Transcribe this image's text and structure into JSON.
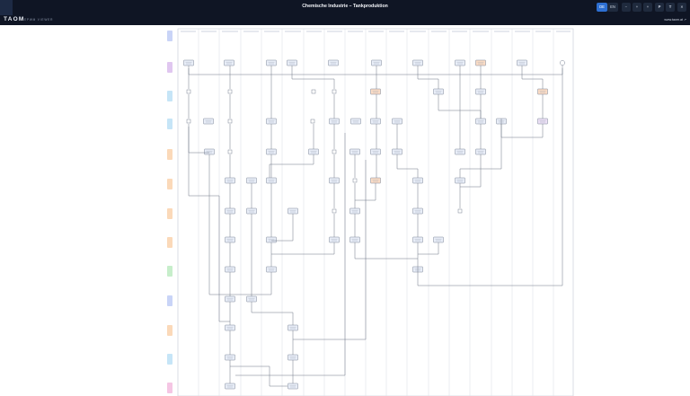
{
  "header": {
    "logo_text": "TAOM",
    "subtitle": "EPWM VIEWER",
    "title": "Chemische Industrie – Tankproduktion",
    "lang_de": "DE",
    "lang_en": "EN",
    "zoom_out": "−",
    "zoom_reset": "+",
    "zoom_in": "+",
    "p_button": "P",
    "t_button": "T",
    "close_button": "✕",
    "website": "www.taom.at ↗",
    "active_language": "DE"
  },
  "colors": {
    "topbar": "#0f1524",
    "accent": "#2d6fd2",
    "lane_colors": [
      "#c9d4f7",
      "#e0c7f0",
      "#c6e5f7",
      "#c6e5f7",
      "#fbd9b9",
      "#fbd9b9",
      "#fbd9b9",
      "#fbd9b9",
      "#c7eecb",
      "#c9d4f7",
      "#fbd9b9",
      "#c6e5f7",
      "#f5c6e4"
    ],
    "node_default": "#e9eef8",
    "node_orange": "#fbdcc5",
    "node_purple": "#ece0f6"
  },
  "diagram": {
    "lane_count": 13,
    "column_count": 19
  }
}
